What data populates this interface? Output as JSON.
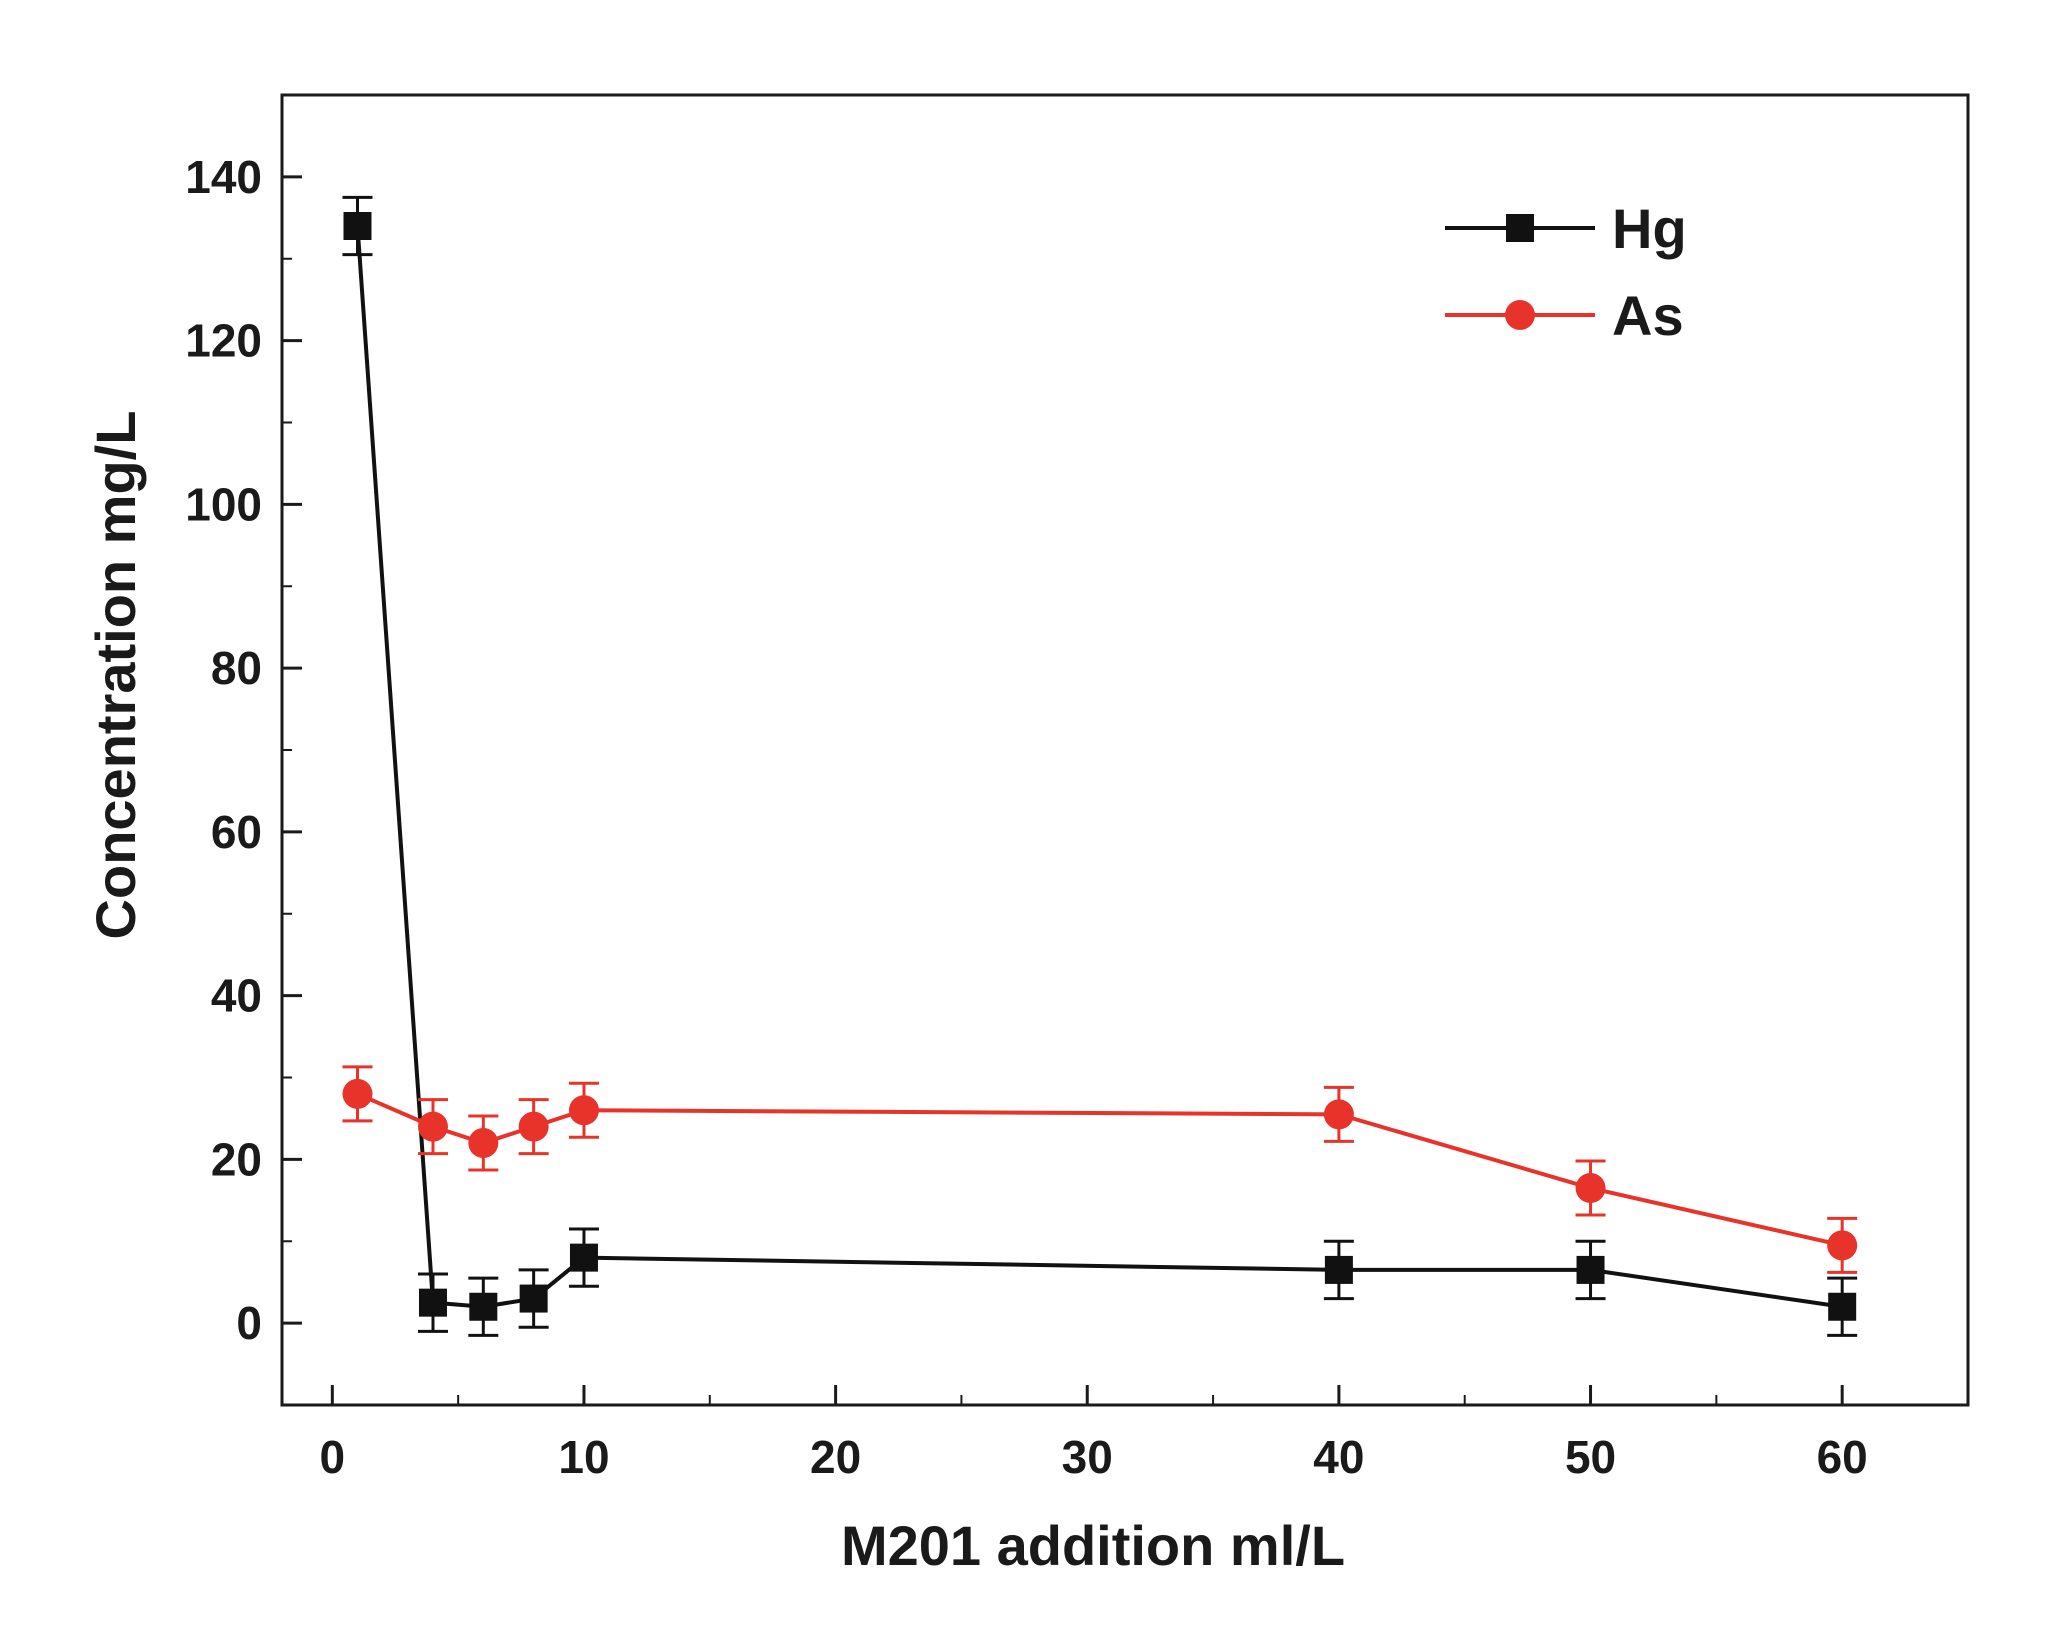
{
  "chart_data": {
    "type": "line",
    "title": "",
    "xlabel": "M201 addition ml/L",
    "ylabel": "Concentration  mg/L",
    "xlim": [
      -2,
      65
    ],
    "ylim": [
      -10,
      150
    ],
    "xticks": [
      0,
      10,
      20,
      30,
      40,
      50,
      60
    ],
    "yticks": [
      0,
      20,
      40,
      60,
      80,
      100,
      120,
      140
    ],
    "legend_position": "top-right",
    "grid": false,
    "series": [
      {
        "name": "Hg",
        "color": "#111111",
        "marker": "square",
        "x": [
          1,
          4,
          6,
          8,
          10,
          40,
          50,
          60
        ],
        "y": [
          134,
          2.5,
          2,
          3,
          8,
          6.5,
          6.5,
          2
        ],
        "error": [
          3.5,
          3.5,
          3.5,
          3.5,
          3.5,
          3.5,
          3.5,
          3.5
        ]
      },
      {
        "name": "As",
        "color": "#e8332a",
        "marker": "circle",
        "x": [
          1,
          4,
          6,
          8,
          10,
          40,
          50,
          60
        ],
        "y": [
          28,
          24,
          22,
          24,
          26,
          25.5,
          16.5,
          9.5
        ],
        "error": [
          3.3,
          3.3,
          3.3,
          3.3,
          3.3,
          3.3,
          3.3,
          3.3
        ]
      }
    ]
  }
}
